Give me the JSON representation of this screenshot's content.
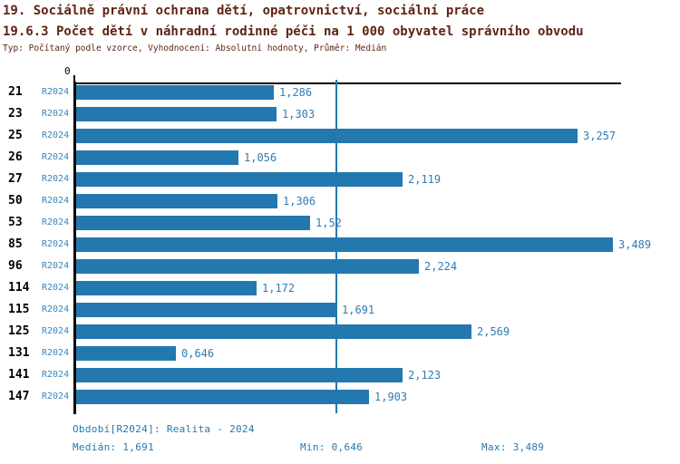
{
  "title_line1": "19. Sociálně právní ochrana dětí, opatrovnictví, sociální práce",
  "title_line2": "19.6.3 Počet dětí v náhradní rodinné péči na 1 000 obyvatel správního obvodu",
  "subtitle": "Typ: Počítaný podle vzorce, Vyhodnocení: Absolutní hodnoty, Průměr: Medián",
  "colors": {
    "title_maroon": "#5e2414",
    "bar_blue": "#2478b0",
    "series_label_blue": "#3a86bb",
    "value_label_blue": "#2e7cb3",
    "footer_blue": "#2478b0",
    "axis_black": "#000000"
  },
  "chart_data": {
    "type": "bar",
    "orientation": "horizontal",
    "series_label": "R2024",
    "categories": [
      "21",
      "23",
      "25",
      "26",
      "27",
      "50",
      "53",
      "85",
      "96",
      "114",
      "115",
      "125",
      "131",
      "141",
      "147"
    ],
    "values": [
      1.286,
      1.303,
      3.257,
      1.056,
      2.119,
      1.306,
      1.52,
      3.489,
      2.224,
      1.172,
      1.691,
      2.569,
      0.646,
      2.123,
      1.903
    ],
    "value_labels": [
      "1,286",
      "1,303",
      "3,257",
      "1,056",
      "2,119",
      "1,306",
      "1,52",
      "3,489",
      "2,224",
      "1,172",
      "1,691",
      "2,569",
      "0,646",
      "2,123",
      "1,903"
    ],
    "xlim": [
      0,
      3.54
    ],
    "zero_tick_label": "0",
    "median_value": 1.691,
    "median_line": true,
    "grid": false,
    "legend": "none",
    "xlabel": "",
    "ylabel": ""
  },
  "footer": {
    "period": "Období[R2024]: Realita - 2024",
    "median": "Medián: 1,691",
    "min": "Min: 0,646",
    "max": "Max: 3,489"
  }
}
